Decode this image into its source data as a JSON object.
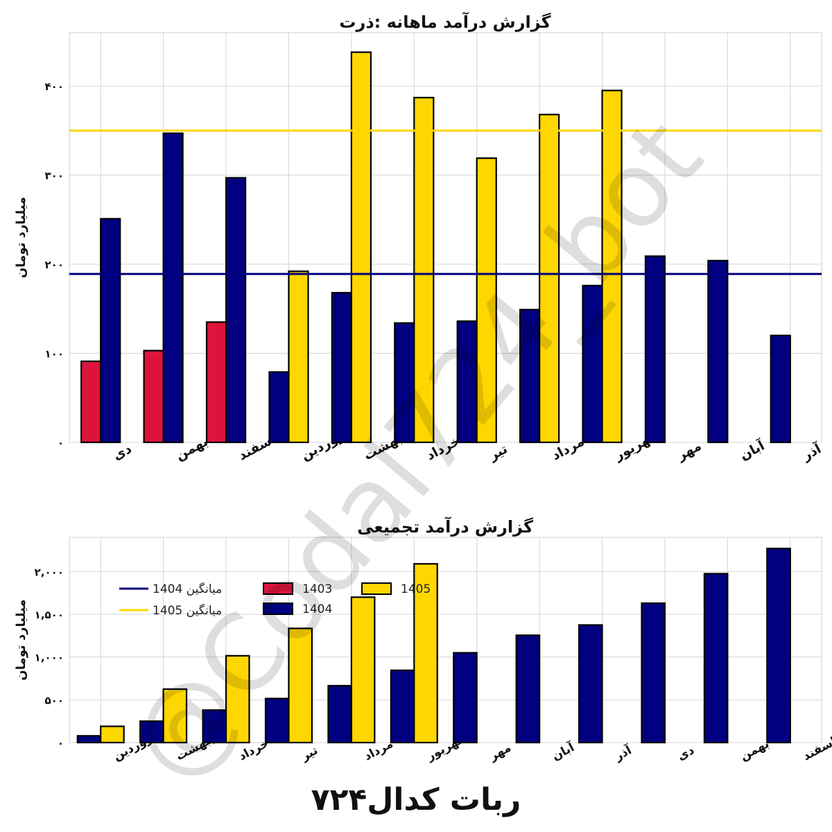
{
  "colors": {
    "y1403": "#DC143C",
    "y1404": "#000080",
    "y1405": "#FFD700",
    "avg1404": "#000080",
    "avg1405": "#FFD700",
    "grid": "#d4d4d4",
    "frame": "#cccccc",
    "text": "#111111"
  },
  "chart_data": [
    {
      "type": "bar",
      "title": "گزارش درآمد ماهانه :ذرت",
      "xlabel": "",
      "ylabel": "میلیارد تومان",
      "ylim": [
        0,
        460
      ],
      "yticks": [
        0,
        100,
        200,
        300,
        400
      ],
      "ytick_labels": [
        "۰",
        "۱۰۰",
        "۲۰۰",
        "۳۰۰",
        "۴۰۰"
      ],
      "categories": [
        "دی",
        "بهمن",
        "اسفند",
        "فروردین",
        "اردیبهشت",
        "خرداد",
        "تیر",
        "مرداد",
        "شهریور",
        "مهر",
        "آبان",
        "آذر"
      ],
      "series": [
        {
          "name": "1403",
          "color_key": "y1403",
          "values": [
            91,
            103,
            135,
            null,
            null,
            null,
            null,
            null,
            null,
            null,
            null,
            null
          ]
        },
        {
          "name": "1404",
          "color_key": "y1404",
          "values": [
            251,
            347,
            297,
            79,
            168,
            134,
            136,
            149,
            176,
            209,
            204,
            120
          ]
        },
        {
          "name": "1405",
          "color_key": "y1405",
          "values": [
            null,
            null,
            null,
            192,
            438,
            387,
            null,
            null,
            null,
            null,
            null,
            null
          ]
        }
      ],
      "bar_groups": [
        {
          "category": "دی",
          "left": "1403",
          "right": "1404"
        },
        {
          "category": "بهمن",
          "left": "1403",
          "right": "1404"
        },
        {
          "category": "اسفند",
          "left": "1403",
          "right": "1404"
        },
        {
          "category": "فروردین",
          "left": "1404",
          "right": "1405"
        },
        {
          "category": "اردیبهشت",
          "left": "1404",
          "right": "1405"
        },
        {
          "category": "خرداد",
          "left": "1404",
          "right": "1405"
        },
        {
          "category": "تیر",
          "left": "1404",
          "right": "1405"
        },
        {
          "category": "مرداد",
          "left": "1404",
          "right": "1405"
        },
        {
          "category": "شهریور",
          "left": "1404",
          "right": "1405"
        },
        {
          "category": "مهر",
          "left": "1404",
          "right": "1405"
        },
        {
          "category": "آبان",
          "left": "1404",
          "right": "1405"
        },
        {
          "category": "آذر",
          "left": "1404",
          "right": "1405"
        }
      ],
      "values_1405_by_month": {
        "تیر": 319,
        "مرداد": 368,
        "شهریور": 395
      },
      "averages": [
        {
          "name": "میانگین 1404",
          "color_key": "avg1404",
          "value": 189
        },
        {
          "name": "میانگین 1405",
          "color_key": "avg1405",
          "value": 350
        }
      ],
      "grid": true,
      "legend": "none"
    },
    {
      "type": "bar",
      "title": "گزارش درآمد تجمیعی",
      "xlabel": "",
      "ylabel": "میلیارد تومان",
      "ylim": [
        0,
        2400
      ],
      "yticks": [
        0,
        500,
        1000,
        1500,
        2000
      ],
      "ytick_labels": [
        "۰",
        "۵۰۰",
        "۱,۰۰۰",
        "۱,۵۰۰",
        "۲,۰۰۰"
      ],
      "categories": [
        "فروردین",
        "اردیبهشت",
        "خرداد",
        "تیر",
        "مرداد",
        "شهریور",
        "مهر",
        "آبان",
        "آذر",
        "دی",
        "بهمن",
        "اسفند"
      ],
      "series": [
        {
          "name": "1404",
          "color_key": "y1404",
          "values": [
            79,
            250,
            380,
            515,
            665,
            845,
            1050,
            1255,
            1375,
            1630,
            1975,
            2270
          ]
        },
        {
          "name": "1405",
          "color_key": "y1405",
          "values": [
            190,
            625,
            1015,
            1335,
            1700,
            2090,
            null,
            null,
            null,
            null,
            null,
            null
          ]
        }
      ],
      "grid": true,
      "legend": "top-left"
    }
  ],
  "legend": {
    "items": [
      {
        "label": "میانگین 1404",
        "kind": "line",
        "color_key": "avg1404"
      },
      {
        "label": "میانگین 1405",
        "kind": "line",
        "color_key": "avg1405"
      },
      {
        "label": "1403",
        "kind": "box",
        "color_key": "y1403"
      },
      {
        "label": "1404",
        "kind": "box",
        "color_key": "y1404"
      },
      {
        "label": "1405",
        "kind": "box",
        "color_key": "y1405"
      }
    ]
  },
  "footer": {
    "title": "ربات کدال۷۲۴"
  },
  "watermark": {
    "text": "@Codal724_bot"
  }
}
